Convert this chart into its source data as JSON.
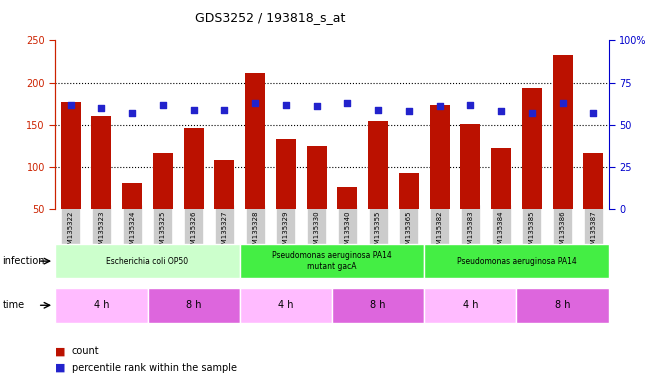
{
  "title": "GDS3252 / 193818_s_at",
  "samples": [
    "GSM135322",
    "GSM135323",
    "GSM135324",
    "GSM135325",
    "GSM135326",
    "GSM135327",
    "GSM135328",
    "GSM135329",
    "GSM135330",
    "GSM135340",
    "GSM135355",
    "GSM135365",
    "GSM135382",
    "GSM135383",
    "GSM135384",
    "GSM135385",
    "GSM135386",
    "GSM135387"
  ],
  "counts": [
    177,
    161,
    81,
    117,
    146,
    108,
    211,
    133,
    125,
    76,
    154,
    93,
    173,
    151,
    122,
    194,
    233,
    117
  ],
  "percentiles": [
    62,
    60,
    57,
    62,
    59,
    59,
    63,
    62,
    61,
    63,
    59,
    58,
    61,
    62,
    58,
    57,
    63,
    57
  ],
  "ylim_left": [
    50,
    250
  ],
  "ylim_right": [
    0,
    100
  ],
  "yticks_left": [
    50,
    100,
    150,
    200,
    250
  ],
  "yticks_right": [
    0,
    25,
    50,
    75,
    100
  ],
  "bar_color": "#bb1100",
  "dot_color": "#2222cc",
  "infection_groups": [
    {
      "label": "Escherichia coli OP50",
      "start": 0,
      "end": 6,
      "color": "#ccffcc"
    },
    {
      "label": "Pseudomonas aeruginosa PA14\nmutant gacA",
      "start": 6,
      "end": 12,
      "color": "#44ee44"
    },
    {
      "label": "Pseudomonas aeruginosa PA14",
      "start": 12,
      "end": 18,
      "color": "#44ee44"
    }
  ],
  "time_groups": [
    {
      "label": "4 h",
      "start": 0,
      "end": 3,
      "color": "#ffbbff"
    },
    {
      "label": "8 h",
      "start": 3,
      "end": 6,
      "color": "#dd66dd"
    },
    {
      "label": "4 h",
      "start": 6,
      "end": 9,
      "color": "#ffbbff"
    },
    {
      "label": "8 h",
      "start": 9,
      "end": 12,
      "color": "#dd66dd"
    },
    {
      "label": "4 h",
      "start": 12,
      "end": 15,
      "color": "#ffbbff"
    },
    {
      "label": "8 h",
      "start": 15,
      "end": 18,
      "color": "#dd66dd"
    }
  ],
  "legend_count_label": "count",
  "legend_pct_label": "percentile rank within the sample",
  "left_axis_color": "#cc2200",
  "right_axis_color": "#0000cc",
  "bg_color": "#ffffff",
  "xticklabel_bg": "#cccccc"
}
